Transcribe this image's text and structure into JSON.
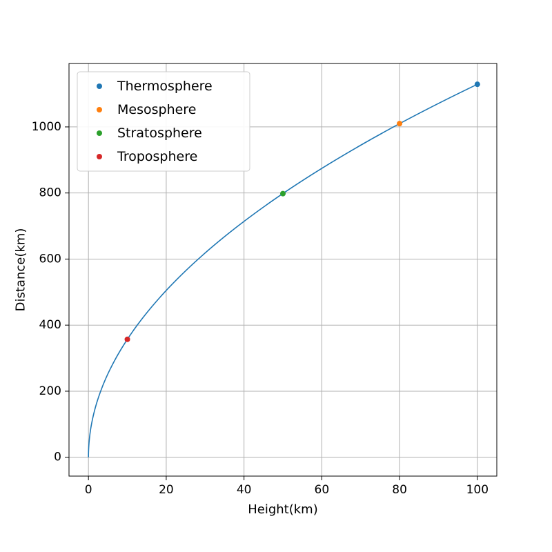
{
  "chart_data": {
    "type": "line",
    "title": "",
    "xlabel": "Height(km)",
    "ylabel": "Distance(km)",
    "xlim": [
      -5,
      105
    ],
    "ylim": [
      -57,
      1192
    ],
    "xticks": [
      0,
      20,
      40,
      60,
      80,
      100
    ],
    "yticks": [
      0,
      200,
      400,
      600,
      800,
      1000
    ],
    "grid": true,
    "grid_color": "#b0b0b0",
    "legend_position": "upper left",
    "line": {
      "color": "#1f77b4",
      "formula": "distance = 112.9 * sqrt(height)",
      "coefficient": 112.9,
      "x_start": 0,
      "x_end": 100
    },
    "series": [
      {
        "name": "Thermosphere",
        "color": "#1f77b4",
        "x": 100,
        "y": 1129
      },
      {
        "name": "Mesosphere",
        "color": "#ff7f0e",
        "x": 80,
        "y": 1010
      },
      {
        "name": "Stratosphere",
        "color": "#2ca02c",
        "x": 50,
        "y": 798
      },
      {
        "name": "Troposphere",
        "color": "#d62728",
        "x": 10,
        "y": 357
      }
    ]
  }
}
